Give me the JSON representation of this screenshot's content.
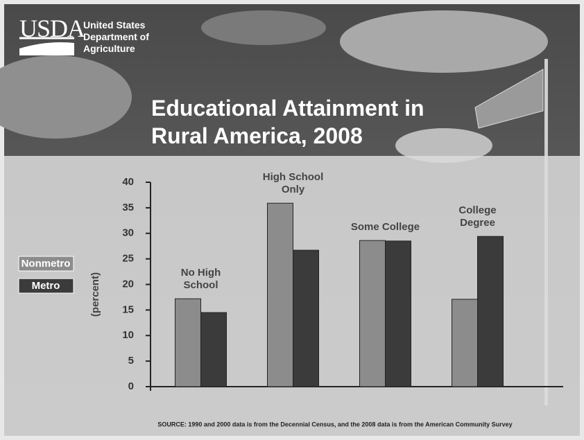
{
  "header": {
    "logo": "USDA",
    "agency": "United States Department of Agriculture"
  },
  "chart_data": {
    "type": "bar",
    "title": "Educational Attainment in Rural America, 2008",
    "y_label": "(percent)",
    "source": "SOURCE: 1990 and 2000 data is from the Decennial Census, and the 2008 data is from the American Community Survey",
    "categories": [
      "No High School",
      "High School Only",
      "Some College",
      "College Degree"
    ],
    "series": [
      {
        "name": "Nonmetro",
        "color": "#8c8c8c",
        "values": [
          17.2,
          35.9,
          28.6,
          17.1
        ]
      },
      {
        "name": "Metro",
        "color": "#3b3b3b",
        "values": [
          14.5,
          26.7,
          28.5,
          29.4
        ]
      }
    ],
    "ylim": [
      0,
      40
    ],
    "yticks": [
      0,
      5,
      10,
      15,
      20,
      25,
      30,
      35,
      40
    ]
  }
}
